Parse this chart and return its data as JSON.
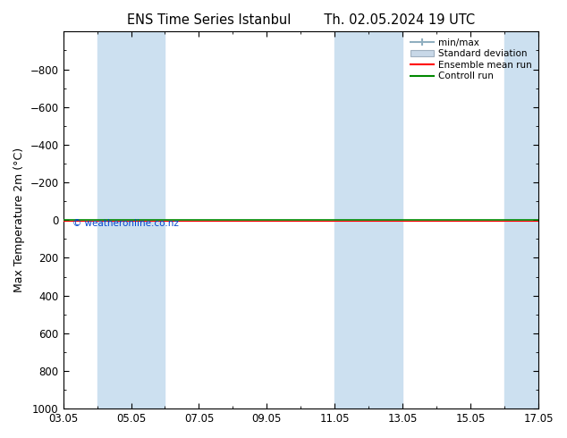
{
  "title_left": "ENS Time Series Istanbul",
  "title_right": "Th. 02.05.2024 19 UTC",
  "ylabel": "Max Temperature 2m (°C)",
  "ylim_top": -1000,
  "ylim_bottom": 1000,
  "yticks": [
    -800,
    -600,
    -400,
    -200,
    0,
    200,
    400,
    600,
    800,
    1000
  ],
  "x_tick_labels": [
    "03.05",
    "05.05",
    "07.05",
    "09.05",
    "11.05",
    "13.05",
    "15.05",
    "17.05"
  ],
  "x_tick_positions": [
    0,
    2,
    4,
    6,
    8,
    10,
    12,
    14
  ],
  "total_days": 14,
  "shaded_regions": [
    {
      "start": 1.0,
      "end": 3.0
    },
    {
      "start": 8.0,
      "end": 10.0
    }
  ],
  "shade_color": "#cce0f0",
  "green_line_y": 0,
  "red_line_y": 0,
  "green_color": "#008800",
  "red_color": "#ff0000",
  "minmax_color_line": "#90afc0",
  "minmax_color_fill": "#b8cfd8",
  "stddev_color": "#c8d8e8",
  "watermark": "© weatheronline.co.nz",
  "watermark_color": "#0044cc",
  "background_color": "#ffffff",
  "legend_items": [
    "min/max",
    "Standard deviation",
    "Ensemble mean run",
    "Controll run"
  ],
  "title_fontsize": 10.5,
  "tick_fontsize": 8.5,
  "label_fontsize": 9
}
